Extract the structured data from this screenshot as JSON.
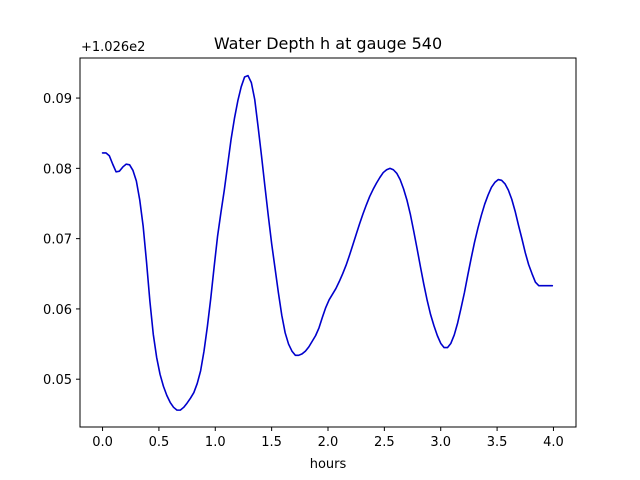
{
  "chart_data": {
    "type": "line",
    "title": "Water Depth h at gauge 540",
    "xlabel": "hours",
    "ylabel": "",
    "y_offset_label": "+1.026e2",
    "y_offset": 102.6,
    "xlim": [
      -0.2,
      4.2
    ],
    "ylim": [
      0.0432,
      0.0957
    ],
    "grid": false,
    "x_ticks": [
      0.0,
      0.5,
      1.0,
      1.5,
      2.0,
      2.5,
      3.0,
      3.5,
      4.0
    ],
    "x_tick_labels": [
      "0.0",
      "0.5",
      "1.0",
      "1.5",
      "2.0",
      "2.5",
      "3.0",
      "3.5",
      "4.0"
    ],
    "y_ticks": [
      0.05,
      0.06,
      0.07,
      0.08,
      0.09
    ],
    "y_tick_labels": [
      "0.05",
      "0.06",
      "0.07",
      "0.08",
      "0.09"
    ],
    "series": [
      {
        "color": "#0000cc",
        "x": [
          0.0,
          0.03,
          0.06,
          0.09,
          0.12,
          0.15,
          0.18,
          0.21,
          0.24,
          0.27,
          0.3,
          0.33,
          0.36,
          0.39,
          0.42,
          0.45,
          0.48,
          0.51,
          0.54,
          0.57,
          0.6,
          0.63,
          0.66,
          0.69,
          0.72,
          0.75,
          0.78,
          0.81,
          0.84,
          0.87,
          0.9,
          0.93,
          0.96,
          0.99,
          1.02,
          1.05,
          1.08,
          1.11,
          1.14,
          1.17,
          1.2,
          1.23,
          1.26,
          1.29,
          1.32,
          1.35,
          1.38,
          1.41,
          1.44,
          1.47,
          1.5,
          1.53,
          1.56,
          1.59,
          1.62,
          1.65,
          1.68,
          1.71,
          1.74,
          1.77,
          1.8,
          1.83,
          1.86,
          1.89,
          1.92,
          1.95,
          1.98,
          2.01,
          2.04,
          2.07,
          2.1,
          2.13,
          2.16,
          2.19,
          2.22,
          2.25,
          2.28,
          2.31,
          2.34,
          2.37,
          2.4,
          2.43,
          2.46,
          2.49,
          2.52,
          2.55,
          2.58,
          2.61,
          2.64,
          2.67,
          2.7,
          2.73,
          2.76,
          2.79,
          2.82,
          2.85,
          2.88,
          2.91,
          2.94,
          2.97,
          3.0,
          3.03,
          3.06,
          3.09,
          3.12,
          3.15,
          3.18,
          3.21,
          3.24,
          3.27,
          3.3,
          3.33,
          3.36,
          3.39,
          3.42,
          3.45,
          3.48,
          3.51,
          3.54,
          3.57,
          3.6,
          3.63,
          3.66,
          3.69,
          3.72,
          3.75,
          3.78,
          3.81,
          3.84,
          3.87,
          3.9,
          3.93,
          3.96,
          3.99
        ],
        "y": [
          0.0822,
          0.0822,
          0.0818,
          0.0806,
          0.0795,
          0.0796,
          0.0802,
          0.0806,
          0.0805,
          0.0797,
          0.0782,
          0.0755,
          0.0718,
          0.0667,
          0.0611,
          0.0564,
          0.0531,
          0.0507,
          0.049,
          0.0477,
          0.0467,
          0.046,
          0.0456,
          0.0456,
          0.046,
          0.0466,
          0.0473,
          0.0481,
          0.0494,
          0.0512,
          0.054,
          0.0575,
          0.0615,
          0.066,
          0.0703,
          0.0737,
          0.0769,
          0.0805,
          0.0841,
          0.0871,
          0.0896,
          0.0916,
          0.093,
          0.0932,
          0.0922,
          0.0898,
          0.0859,
          0.0818,
          0.0775,
          0.0733,
          0.0693,
          0.0658,
          0.0623,
          0.0591,
          0.0566,
          0.055,
          0.054,
          0.0534,
          0.0534,
          0.0536,
          0.054,
          0.0546,
          0.0554,
          0.0562,
          0.0573,
          0.0588,
          0.0602,
          0.0613,
          0.0621,
          0.0629,
          0.0639,
          0.065,
          0.0662,
          0.0676,
          0.0691,
          0.0706,
          0.0721,
          0.0735,
          0.0748,
          0.076,
          0.077,
          0.0779,
          0.0787,
          0.0794,
          0.0798,
          0.08,
          0.0798,
          0.0793,
          0.0784,
          0.0771,
          0.0755,
          0.0735,
          0.0711,
          0.0686,
          0.066,
          0.0635,
          0.0612,
          0.0592,
          0.0576,
          0.0562,
          0.0551,
          0.0545,
          0.0545,
          0.0551,
          0.0563,
          0.058,
          0.0601,
          0.0623,
          0.0648,
          0.0672,
          0.0695,
          0.0715,
          0.0733,
          0.0749,
          0.0762,
          0.0773,
          0.078,
          0.0784,
          0.0783,
          0.0778,
          0.0769,
          0.0756,
          0.0739,
          0.0719,
          0.07,
          0.068,
          0.0663,
          0.065,
          0.0638,
          0.0633,
          0.0633,
          0.0633,
          0.0633,
          0.0633
        ]
      }
    ]
  }
}
